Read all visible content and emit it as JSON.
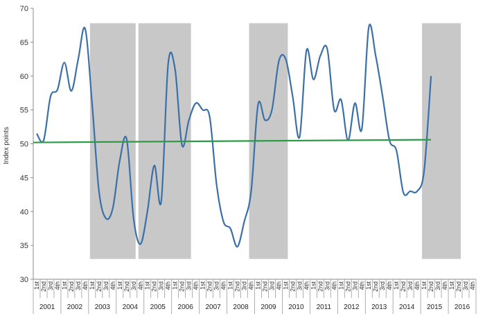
{
  "chart_data": {
    "type": "line",
    "title": "",
    "xlabel": "",
    "ylabel": "Index points",
    "ylim": [
      30,
      70
    ],
    "yticks": [
      30,
      35,
      40,
      45,
      50,
      55,
      60,
      65,
      70
    ],
    "grid": false,
    "legend": "none",
    "quarter_labels": [
      "1st",
      "2nd",
      "3rd",
      "4th"
    ],
    "years": [
      "2001",
      "2002",
      "2003",
      "2004",
      "2005",
      "2006",
      "2007",
      "2008",
      "2009",
      "2010",
      "2011",
      "2012",
      "2013",
      "2014",
      "2015",
      "2016"
    ],
    "series": [
      {
        "color": "#3b6fa8",
        "values": [
          51.5,
          50.5,
          57.0,
          58.0,
          62.0,
          57.8,
          62.5,
          67.0,
          56.0,
          43.0,
          39.0,
          40.5,
          47.5,
          50.7,
          39.0,
          35.2,
          40.0,
          46.8,
          41.5,
          61.8,
          61.0,
          49.8,
          53.5,
          56.0,
          55.0,
          54.0,
          44.0,
          38.5,
          37.5,
          34.8,
          38.5,
          43.0,
          55.8,
          53.5,
          55.0,
          62.2,
          62.5,
          57.0,
          51.0,
          63.8,
          59.5,
          63.0,
          64.0,
          55.0,
          56.5,
          50.5,
          56.0,
          52.2,
          67.2,
          63.0,
          57.0,
          50.5,
          49.0,
          42.8,
          43.0,
          43.0,
          46.0,
          60.0
        ]
      },
      {
        "color": "#2e9a48",
        "values_start_end": [
          50.2,
          50.6
        ]
      }
    ],
    "shaded_regions": [
      {
        "start": "2003 1st",
        "end": "2004 3rd"
      },
      {
        "start": "2004 4th",
        "end": "2006 3rd"
      },
      {
        "start": "2008 4th",
        "end": "2010 1st"
      },
      {
        "start": "2015 1st",
        "end": "2016 2nd"
      }
    ],
    "shade_color": "#c8c8c8"
  }
}
